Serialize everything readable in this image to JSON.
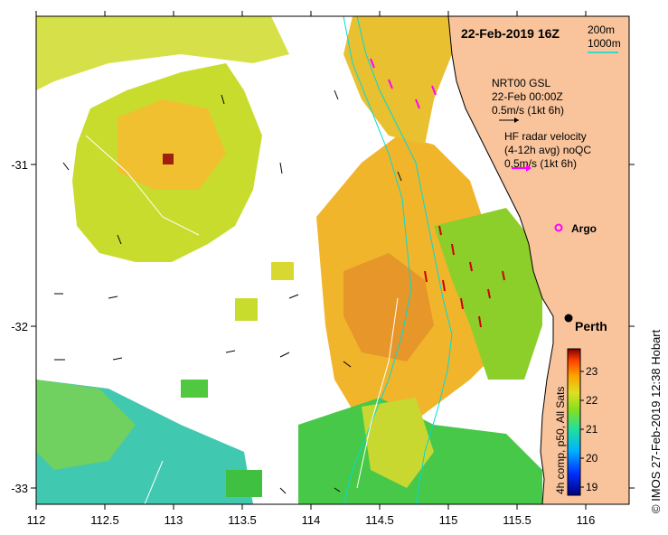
{
  "title": "22-Feb-2019 16Z",
  "contour_legend": {
    "c200": "200m",
    "c1000": "1000m"
  },
  "current_legend": {
    "l1": "NRT00 GSL",
    "l2": "22-Feb 00:00Z",
    "l3": "0.5m/s (1kt 6h)"
  },
  "radar_legend": {
    "l1": "HF radar velocity",
    "l2": "(4-12h avg) noQC",
    "l3": "0.5m/s (1kt 6h)"
  },
  "argo_label": "Argo",
  "city_label": "Perth",
  "x_ticks": [
    "112",
    "112.5",
    "113",
    "113.5",
    "114",
    "114.5",
    "115",
    "115.5",
    "116"
  ],
  "y_ticks": [
    "-31",
    "-32",
    "-33"
  ],
  "colorbar": {
    "ticks": [
      "23",
      "22",
      "21",
      "20",
      "19"
    ],
    "label": "4h comp, p50, All Sats"
  },
  "credit": "© IMOS 27-Feb-2019 12:38 Hobart",
  "colors": {
    "land": "#f9c49b",
    "contour": "#00e0e0",
    "radar": "#ff00ff",
    "vectors": "#cc0000"
  }
}
